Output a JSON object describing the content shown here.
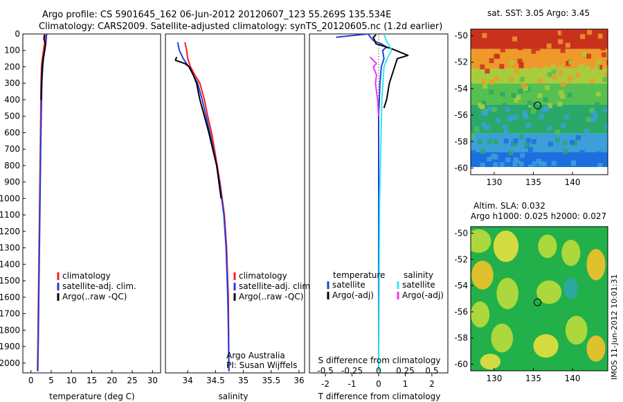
{
  "header": {
    "line1": "Argo profile: CS 5901645_162 06-Jun-2012 20120607_123 55.269S 135.534E",
    "line2": "Climatology: CARS2009. Satellite-adjusted climatology: synTS_20120605.nc (1.2d earlier)"
  },
  "credits": {
    "line1": "Argo Australia",
    "line2": "PI: Susan Wijffels"
  },
  "stamp": "IMOS 11-Jun-2012 10:01:31",
  "colors": {
    "red": "#ff1a1a",
    "blue": "#1f3fdc",
    "black": "#000000",
    "cyan": "#33e6ee",
    "magenta": "#ee33ee"
  },
  "depth_ticks": [
    "0",
    "100",
    "200",
    "300",
    "400",
    "500",
    "600",
    "700",
    "800",
    "900",
    "1000",
    "1100",
    "1200",
    "1300",
    "1400",
    "1500",
    "1600",
    "1700",
    "1800",
    "1900",
    "2000"
  ],
  "chart_data": [
    {
      "type": "line",
      "id": "temperature",
      "xlabel": "temperature (deg C)",
      "ylabel": "",
      "xlim": [
        -2,
        32
      ],
      "ylim": [
        2060,
        0
      ],
      "xticks": [
        0,
        5,
        10,
        15,
        20,
        25,
        30
      ],
      "xtick_labels": [
        "0",
        "5",
        "10",
        "15",
        "20",
        "25",
        "30"
      ],
      "legend": {
        "placement": "lower-center",
        "entries": [
          "climatology",
          "satellite-adj. clim.",
          "Argo(..raw -QC)"
        ]
      },
      "series": [
        {
          "name": "climatology",
          "color": "red",
          "points": [
            [
              3.5,
              0
            ],
            [
              3.4,
              50
            ],
            [
              3.1,
              100
            ],
            [
              2.8,
              150
            ],
            [
              2.6,
              200
            ],
            [
              2.5,
              300
            ],
            [
              2.4,
              500
            ],
            [
              2.3,
              700
            ],
            [
              2.2,
              900
            ],
            [
              2.1,
              1100
            ],
            [
              2.0,
              1300
            ],
            [
              1.9,
              1500
            ],
            [
              1.8,
              1700
            ],
            [
              1.7,
              1900
            ],
            [
              1.6,
              2050
            ]
          ]
        },
        {
          "name": "satellite-adj. clim.",
          "color": "blue",
          "points": [
            [
              3.9,
              0
            ],
            [
              3.7,
              50
            ],
            [
              3.4,
              100
            ],
            [
              3.1,
              150
            ],
            [
              2.9,
              200
            ],
            [
              2.7,
              300
            ],
            [
              2.55,
              500
            ],
            [
              2.4,
              700
            ],
            [
              2.3,
              900
            ],
            [
              2.2,
              1100
            ],
            [
              2.1,
              1300
            ],
            [
              2.0,
              1500
            ],
            [
              1.9,
              1700
            ],
            [
              1.8,
              1900
            ],
            [
              1.7,
              2050
            ]
          ]
        },
        {
          "name": "Argo(..raw -QC)",
          "color": "black",
          "points": [
            [
              3.3,
              5
            ],
            [
              3.2,
              30
            ],
            [
              3.6,
              60
            ],
            [
              3.4,
              100
            ],
            [
              3.0,
              150
            ],
            [
              2.8,
              200
            ],
            [
              2.6,
              300
            ],
            [
              2.5,
              400
            ]
          ]
        }
      ]
    },
    {
      "type": "line",
      "id": "salinity",
      "xlabel": "salinity",
      "ylabel": "",
      "xlim": [
        33.6,
        36.1
      ],
      "ylim": [
        2060,
        0
      ],
      "xticks": [
        34,
        34.5,
        35,
        35.5,
        36
      ],
      "xtick_labels": [
        "34",
        "34.5",
        "35",
        "35.5",
        "36"
      ],
      "legend": {
        "placement": "lower-right",
        "entries": [
          "climatology",
          "satellite-adj. clim.",
          "Argo(..raw -QC)"
        ]
      },
      "series": [
        {
          "name": "climatology",
          "color": "red",
          "points": [
            [
              33.95,
              50
            ],
            [
              33.98,
              100
            ],
            [
              34.0,
              150
            ],
            [
              34.05,
              200
            ],
            [
              34.13,
              250
            ],
            [
              34.22,
              300
            ],
            [
              34.3,
              400
            ],
            [
              34.36,
              500
            ],
            [
              34.43,
              600
            ],
            [
              34.48,
              700
            ],
            [
              34.53,
              800
            ],
            [
              34.58,
              900
            ],
            [
              34.62,
              1000
            ],
            [
              34.66,
              1100
            ],
            [
              34.68,
              1200
            ],
            [
              34.7,
              1300
            ],
            [
              34.71,
              1400
            ],
            [
              34.72,
              1500
            ],
            [
              34.73,
              1600
            ],
            [
              34.735,
              1800
            ],
            [
              34.74,
              2050
            ]
          ]
        },
        {
          "name": "satellite-adj. clim.",
          "color": "blue",
          "points": [
            [
              33.82,
              50
            ],
            [
              33.85,
              100
            ],
            [
              33.92,
              150
            ],
            [
              34.02,
              200
            ],
            [
              34.1,
              250
            ],
            [
              34.18,
              300
            ],
            [
              34.26,
              400
            ],
            [
              34.33,
              500
            ],
            [
              34.4,
              600
            ],
            [
              34.46,
              700
            ],
            [
              34.52,
              800
            ],
            [
              34.57,
              900
            ],
            [
              34.61,
              1000
            ],
            [
              34.65,
              1100
            ],
            [
              34.67,
              1200
            ],
            [
              34.69,
              1300
            ],
            [
              34.7,
              1400
            ],
            [
              34.71,
              1500
            ],
            [
              34.72,
              1600
            ],
            [
              34.73,
              1800
            ],
            [
              34.74,
              2050
            ]
          ]
        },
        {
          "name": "Argo(..raw -QC)",
          "color": "black",
          "points": [
            [
              33.8,
              140
            ],
            [
              33.78,
              160
            ],
            [
              33.95,
              180
            ],
            [
              34.03,
              200
            ],
            [
              34.1,
              250
            ],
            [
              34.16,
              300
            ],
            [
              34.22,
              400
            ],
            [
              34.3,
              500
            ],
            [
              34.38,
              600
            ],
            [
              34.45,
              700
            ],
            [
              34.52,
              800
            ],
            [
              34.56,
              900
            ],
            [
              34.6,
              1000
            ]
          ]
        }
      ],
      "credit_placement": "bottom-right"
    },
    {
      "type": "line",
      "id": "difference",
      "xlabel": "T difference from climatology",
      "ylabel": "",
      "x2label": "S difference from climatology",
      "xlim": [
        -2.6,
        2.6
      ],
      "x2lim": [
        -0.65,
        0.65
      ],
      "ylim": [
        2060,
        0
      ],
      "xticks": [
        -2,
        -1,
        0,
        1,
        2
      ],
      "xtick_labels": [
        "-2",
        "-1",
        "0",
        "1",
        "2"
      ],
      "x2ticks": [
        -0.5,
        -0.25,
        0,
        0.25,
        0.5
      ],
      "x2tick_labels": [
        "-0.5",
        "-0.25",
        "0",
        "0.25",
        "0.5"
      ],
      "legend": {
        "placement": "lower-center",
        "group1": {
          "heading": "temperature",
          "entries": [
            "satellite",
            "Argo(-adj)"
          ]
        },
        "group2": {
          "heading": "salinity",
          "entries": [
            "satellite",
            "Argo(-adj)"
          ]
        }
      },
      "series": [
        {
          "name": "temperature satellite",
          "color": "blue",
          "axis": "T",
          "points": [
            [
              -1.6,
              20
            ],
            [
              -0.4,
              0
            ],
            [
              -0.2,
              40
            ],
            [
              0.1,
              60
            ],
            [
              0.3,
              80
            ],
            [
              0.15,
              100
            ],
            [
              0.2,
              150
            ],
            [
              0.1,
              200
            ],
            [
              0.05,
              300
            ],
            [
              0.0,
              500
            ],
            [
              0.0,
              2050
            ]
          ]
        },
        {
          "name": "temperature Argo(-adj)",
          "color": "black",
          "axis": "T",
          "points": [
            [
              -0.1,
              5
            ],
            [
              -0.2,
              20
            ],
            [
              -0.1,
              60
            ],
            [
              0.5,
              90
            ],
            [
              1.1,
              130
            ],
            [
              0.7,
              150
            ],
            [
              0.6,
              200
            ],
            [
              0.4,
              300
            ],
            [
              0.3,
              400
            ],
            [
              0.2,
              450
            ]
          ]
        },
        {
          "name": "salinity satellite",
          "color": "cyan",
          "axis": "S",
          "points": [
            [
              0.05,
              0
            ],
            [
              0.07,
              40
            ],
            [
              0.1,
              70
            ],
            [
              0.12,
              100
            ],
            [
              0.08,
              150
            ],
            [
              0.05,
              200
            ],
            [
              0.03,
              400
            ],
            [
              0.02,
              700
            ],
            [
              0.01,
              1000
            ],
            [
              0.005,
              1500
            ],
            [
              0.0,
              2050
            ]
          ]
        },
        {
          "name": "salinity Argo(-adj)",
          "color": "magenta",
          "axis": "S",
          "points": [
            [
              -0.08,
              140
            ],
            [
              -0.02,
              180
            ],
            [
              -0.05,
              200
            ],
            [
              -0.02,
              250
            ],
            [
              -0.03,
              300
            ],
            [
              -0.01,
              400
            ],
            [
              0.0,
              500
            ]
          ]
        }
      ]
    },
    {
      "type": "heatmap",
      "id": "sst-map",
      "title": "sat. SST: 3.05  Argo: 3.45",
      "xlim": [
        127,
        144.5
      ],
      "ylim": [
        -60.5,
        -49.5
      ],
      "xticks": [
        130,
        135,
        140
      ],
      "xtick_labels": [
        "130",
        "135",
        "140"
      ],
      "yticks": [
        -50,
        -52,
        -54,
        -56,
        -58,
        -60
      ],
      "ytick_labels": [
        "-50",
        "-52",
        "-54",
        "-56",
        "-58",
        "-60"
      ],
      "marker": {
        "lon": 135.534,
        "lat": -55.269
      },
      "color_bands": [
        {
          "lat_top": -49.5,
          "lat_bottom": -51.0,
          "color": "#c8321c"
        },
        {
          "lat_top": -51.0,
          "lat_bottom": -52.5,
          "color": "#ee9a2a"
        },
        {
          "lat_top": -52.5,
          "lat_bottom": -53.6,
          "color": "#a8cc3c"
        },
        {
          "lat_top": -53.6,
          "lat_bottom": -55.2,
          "color": "#55c050"
        },
        {
          "lat_top": -55.2,
          "lat_bottom": -57.4,
          "color": "#2aa86a"
        },
        {
          "lat_top": -57.4,
          "lat_bottom": -58.8,
          "color": "#3c9fd8"
        },
        {
          "lat_top": -58.8,
          "lat_bottom": -60.5,
          "color": "#1d6fe0"
        }
      ]
    },
    {
      "type": "heatmap",
      "id": "sla-map",
      "title": "Altim. SLA: 0.032",
      "subtitle": "Argo h1000: 0.025 h2000: 0.027",
      "xlim": [
        127,
        144.5
      ],
      "ylim": [
        -60.5,
        -49.5
      ],
      "xticks": [
        130,
        135,
        140
      ],
      "xtick_labels": [
        "130",
        "135",
        "140"
      ],
      "yticks": [
        -50,
        -52,
        -54,
        -56,
        -58,
        -60
      ],
      "ytick_labels": [
        "-50",
        "-52",
        "-54",
        "-56",
        "-58",
        "-60"
      ],
      "marker": {
        "lon": 135.534,
        "lat": -55.269
      },
      "base_color": "#22b04a",
      "patches": [
        {
          "lon": 128.0,
          "lat": -50.6,
          "rx": 1.6,
          "ry": 0.9,
          "color": "#b9dd3c"
        },
        {
          "lon": 131.5,
          "lat": -51.0,
          "rx": 1.6,
          "ry": 1.2,
          "color": "#e8e040"
        },
        {
          "lon": 136.8,
          "lat": -51.0,
          "rx": 1.2,
          "ry": 0.9,
          "color": "#b9dd3c"
        },
        {
          "lon": 139.8,
          "lat": -51.5,
          "rx": 1.2,
          "ry": 1.0,
          "color": "#b9dd3c"
        },
        {
          "lon": 143.0,
          "lat": -52.4,
          "rx": 1.2,
          "ry": 1.2,
          "color": "#f4c22a"
        },
        {
          "lon": 128.5,
          "lat": -53.2,
          "rx": 1.4,
          "ry": 1.1,
          "color": "#f4c22a"
        },
        {
          "lon": 131.7,
          "lat": -54.6,
          "rx": 1.4,
          "ry": 1.2,
          "color": "#b9dd3c"
        },
        {
          "lon": 137.0,
          "lat": -54.5,
          "rx": 1.6,
          "ry": 0.9,
          "color": "#b9dd3c"
        },
        {
          "lon": 139.8,
          "lat": -54.2,
          "rx": 0.9,
          "ry": 0.8,
          "color": "#2aa8a8"
        },
        {
          "lon": 128.2,
          "lat": -56.2,
          "rx": 1.2,
          "ry": 1.0,
          "color": "#b9dd3c"
        },
        {
          "lon": 131.0,
          "lat": -58.0,
          "rx": 1.4,
          "ry": 1.1,
          "color": "#b9dd3c"
        },
        {
          "lon": 136.6,
          "lat": -58.6,
          "rx": 1.6,
          "ry": 0.9,
          "color": "#e8e040"
        },
        {
          "lon": 140.5,
          "lat": -57.4,
          "rx": 1.4,
          "ry": 1.1,
          "color": "#b9dd3c"
        },
        {
          "lon": 143.0,
          "lat": -58.8,
          "rx": 1.2,
          "ry": 1.0,
          "color": "#f4c22a"
        },
        {
          "lon": 129.5,
          "lat": -59.8,
          "rx": 1.3,
          "ry": 0.6,
          "color": "#e8e040"
        }
      ]
    }
  ]
}
